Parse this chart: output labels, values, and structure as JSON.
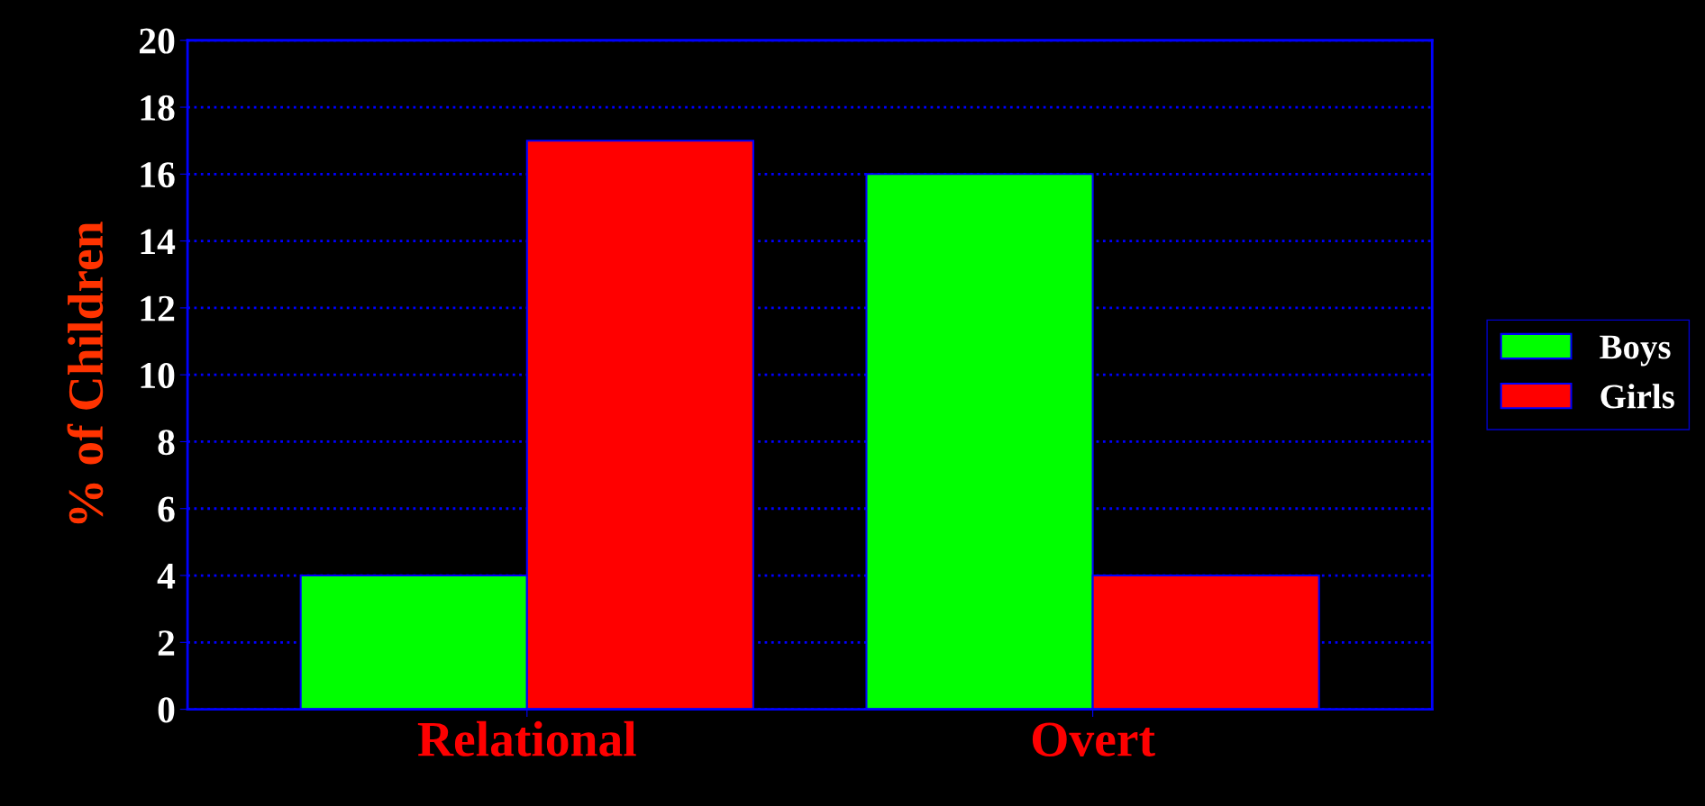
{
  "chart_data": {
    "type": "bar",
    "ylabel": "% of Children",
    "categories": [
      "Relational",
      "Overt"
    ],
    "series": [
      {
        "name": "Boys",
        "color": "#00ff00",
        "values": [
          4,
          16
        ]
      },
      {
        "name": "Girls",
        "color": "#ff0000",
        "values": [
          17,
          4
        ]
      }
    ],
    "ylim": [
      0,
      20
    ],
    "yticks": [
      0,
      2,
      4,
      6,
      8,
      10,
      12,
      14,
      16,
      18,
      20
    ],
    "grid": "y",
    "legend": "right"
  }
}
